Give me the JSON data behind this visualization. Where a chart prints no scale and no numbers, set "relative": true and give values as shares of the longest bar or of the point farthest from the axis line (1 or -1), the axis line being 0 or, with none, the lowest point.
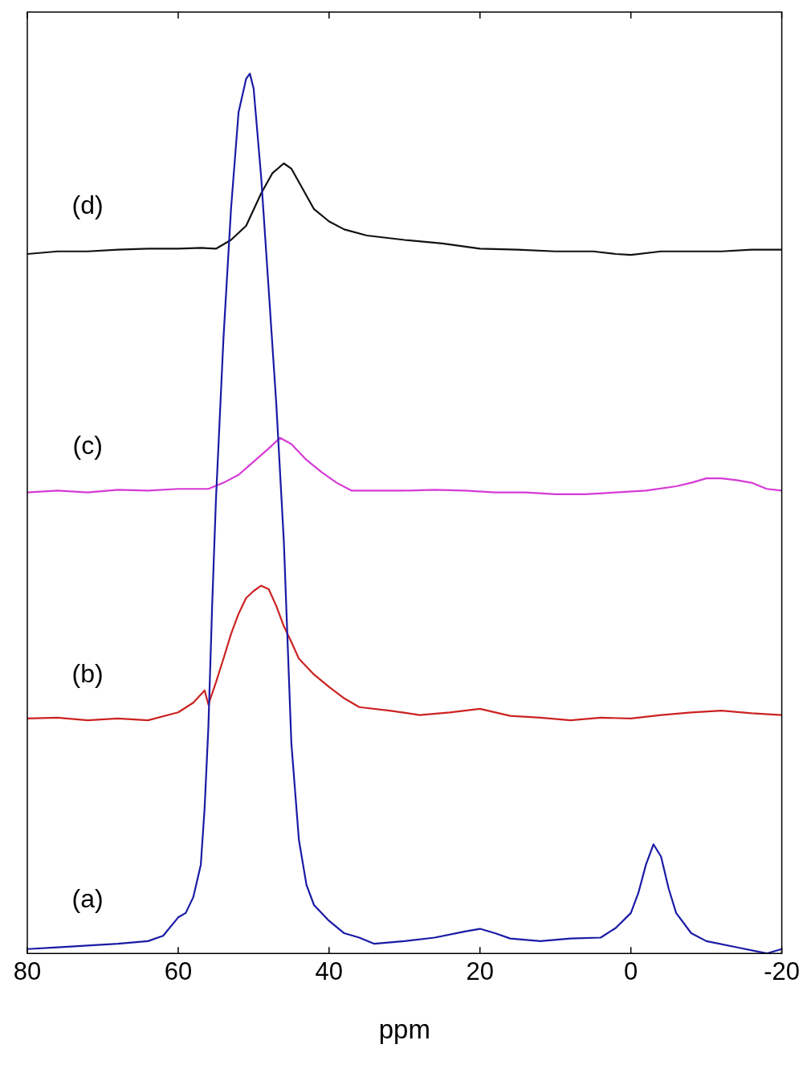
{
  "chart_data": {
    "type": "line",
    "relative": true,
    "xlabel": "ppm",
    "xlim": [
      80,
      -20
    ],
    "xticks": [
      80,
      60,
      40,
      20,
      0,
      -20
    ],
    "grid": false,
    "legend": false,
    "marker": "none",
    "line_style": "solid",
    "series": [
      {
        "name": "(a)",
        "color": "#1a1aa6",
        "x": [
          80,
          76,
          72,
          68,
          64,
          62,
          60,
          59,
          58,
          57,
          56.5,
          56,
          55.5,
          55,
          54,
          53,
          52,
          51,
          50.5,
          50,
          49,
          48,
          47,
          46,
          45,
          44,
          43,
          42,
          40,
          38,
          36,
          34,
          30,
          26,
          22,
          20,
          18,
          16,
          12,
          8,
          4,
          2,
          0,
          -1,
          -2,
          -3,
          -4,
          -5,
          -6,
          -8,
          -10,
          -14,
          -18,
          -20
        ],
        "values": [
          0.005,
          0.007,
          0.009,
          0.011,
          0.014,
          0.02,
          0.041,
          0.046,
          0.064,
          0.101,
          0.165,
          0.257,
          0.395,
          0.515,
          0.699,
          0.846,
          0.956,
          0.994,
          1,
          0.983,
          0.882,
          0.754,
          0.625,
          0.469,
          0.239,
          0.129,
          0.078,
          0.055,
          0.037,
          0.023,
          0.018,
          0.011,
          0.014,
          0.018,
          0.025,
          0.028,
          0.023,
          0.017,
          0.014,
          0.017,
          0.018,
          0.029,
          0.046,
          0.069,
          0.101,
          0.124,
          0.11,
          0.074,
          0.046,
          0.023,
          0.014,
          0.007,
          0,
          0.005
        ]
      },
      {
        "name": "(b)",
        "color": "#cc2222",
        "x": [
          80,
          76,
          72,
          68,
          64,
          60,
          58,
          56.5,
          56,
          55,
          54,
          53,
          52,
          51,
          50,
          49,
          48,
          47,
          46,
          45,
          44,
          42,
          40,
          38,
          36,
          32,
          28,
          24,
          20,
          16,
          12,
          8,
          4,
          0,
          -4,
          -8,
          -12,
          -16,
          -20
        ],
        "values": [
          0.267,
          0.268,
          0.265,
          0.267,
          0.265,
          0.274,
          0.285,
          0.299,
          0.283,
          0.308,
          0.335,
          0.363,
          0.386,
          0.404,
          0.412,
          0.418,
          0.414,
          0.395,
          0.372,
          0.354,
          0.335,
          0.317,
          0.303,
          0.29,
          0.28,
          0.276,
          0.271,
          0.274,
          0.278,
          0.27,
          0.268,
          0.265,
          0.268,
          0.267,
          0.271,
          0.274,
          0.276,
          0.273,
          0.271
        ]
      },
      {
        "name": "(c)",
        "color": "#d63ad6",
        "x": [
          80,
          76,
          72,
          68,
          64,
          60,
          56,
          54,
          52,
          50,
          48,
          46.5,
          45,
          43,
          41,
          39,
          37,
          34,
          30,
          26,
          22,
          18,
          14,
          10,
          6,
          2,
          -2,
          -6,
          -8,
          -10,
          -12,
          -14,
          -16,
          -18,
          -20
        ],
        "values": [
          0.524,
          0.526,
          0.524,
          0.527,
          0.526,
          0.528,
          0.528,
          0.535,
          0.544,
          0.559,
          0.574,
          0.586,
          0.579,
          0.561,
          0.547,
          0.535,
          0.526,
          0.526,
          0.526,
          0.527,
          0.526,
          0.524,
          0.524,
          0.522,
          0.522,
          0.524,
          0.526,
          0.531,
          0.535,
          0.54,
          0.54,
          0.538,
          0.535,
          0.528,
          0.526
        ]
      },
      {
        "name": "(d)",
        "color": "#111111",
        "x": [
          80,
          76,
          72,
          68,
          64,
          60,
          57,
          55,
          53,
          51,
          49,
          47.5,
          46,
          45,
          43.5,
          42,
          40,
          38,
          35,
          30,
          25,
          20,
          15,
          10,
          5,
          2,
          0,
          -4,
          -8,
          -12,
          -16,
          -20
        ],
        "values": [
          0.795,
          0.798,
          0.798,
          0.8,
          0.801,
          0.801,
          0.802,
          0.801,
          0.811,
          0.827,
          0.864,
          0.887,
          0.898,
          0.892,
          0.869,
          0.846,
          0.832,
          0.823,
          0.816,
          0.811,
          0.807,
          0.801,
          0.8,
          0.798,
          0.798,
          0.795,
          0.794,
          0.798,
          0.798,
          0.798,
          0.8,
          0.8
        ]
      }
    ]
  }
}
